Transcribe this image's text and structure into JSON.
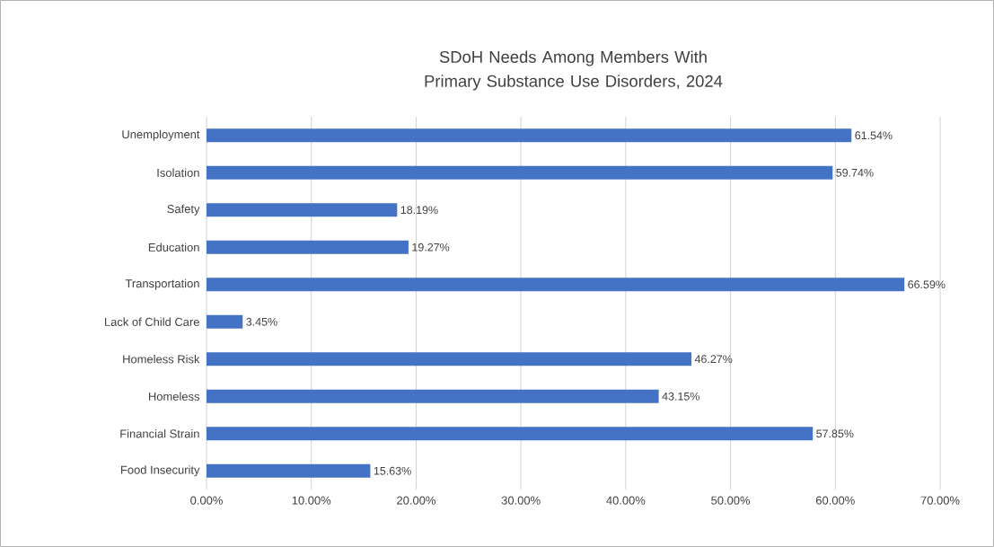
{
  "chart_data": {
    "type": "bar",
    "orientation": "horizontal",
    "title": "SDoH Needs Among Members With Primary Substance Use Disorders, 2024",
    "categories": [
      "Unemployment",
      "Isolation",
      "Safety",
      "Education",
      "Transportation",
      "Lack of Child Care",
      "Homeless Risk",
      "Homeless",
      "Financial Strain",
      "Food Insecurity"
    ],
    "values": [
      61.54,
      59.74,
      18.19,
      19.27,
      66.59,
      3.45,
      46.27,
      43.15,
      57.85,
      15.63
    ],
    "value_labels": [
      "61.54%",
      "59.74%",
      "18.19%",
      "19.27%",
      "66.59%",
      "3.45%",
      "46.27%",
      "43.15%",
      "57.85%",
      "15.63%"
    ],
    "color": "#4472c4",
    "xlim": [
      0,
      70
    ],
    "xticks": [
      {
        "value": 0,
        "label": "0.00%"
      },
      {
        "value": 10,
        "label": "10.00%"
      },
      {
        "value": 20,
        "label": "20.00%"
      },
      {
        "value": 30,
        "label": "30.00%"
      },
      {
        "value": 40,
        "label": "40.00%"
      },
      {
        "value": 50,
        "label": "50.00%"
      },
      {
        "value": 60,
        "label": "60.00%"
      },
      {
        "value": 70,
        "label": "70.00%"
      }
    ],
    "grid": "x"
  }
}
